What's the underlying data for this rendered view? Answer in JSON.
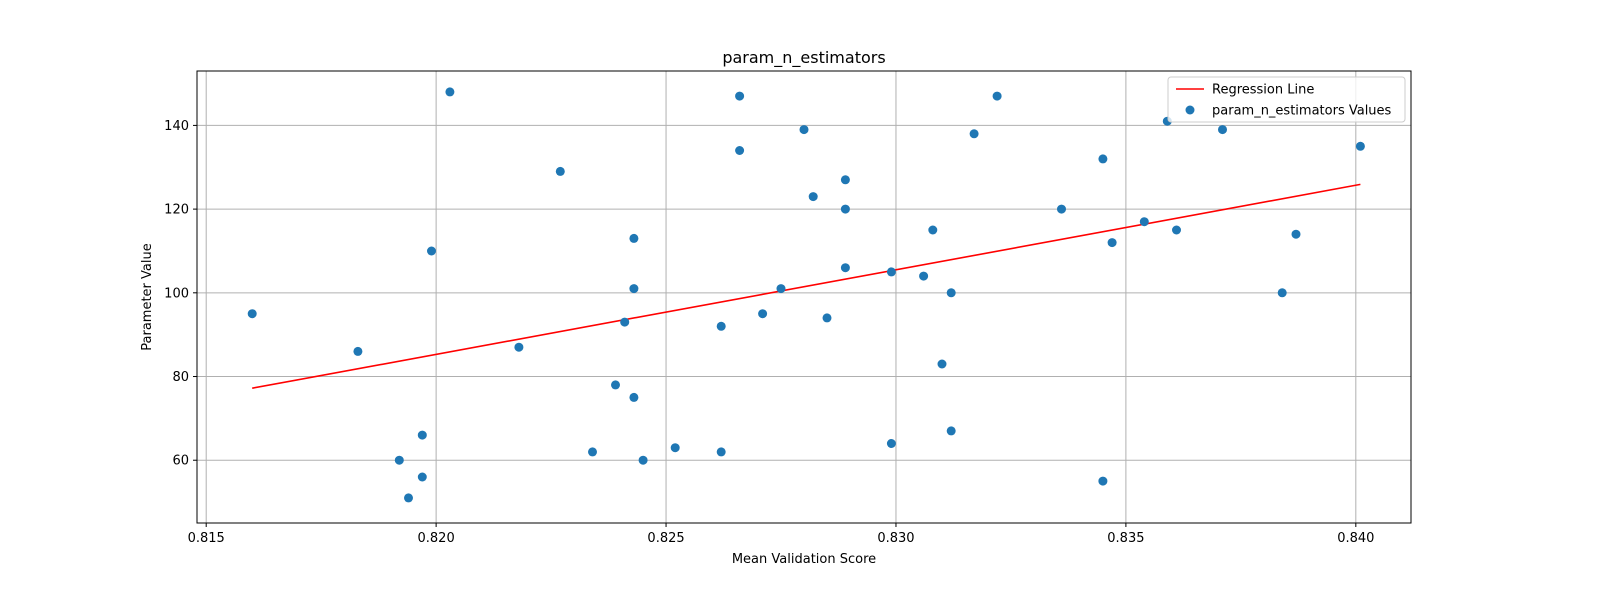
{
  "chart_data": {
    "type": "scatter",
    "title": "param_n_estimators",
    "xlabel": "Mean Validation Score",
    "ylabel": "Parameter Value",
    "xlim": [
      0.8148,
      0.8412
    ],
    "ylim": [
      45,
      153
    ],
    "xticks": [
      0.815,
      0.82,
      0.825,
      0.83,
      0.835,
      0.84
    ],
    "xtick_labels": [
      "0.815",
      "0.820",
      "0.825",
      "0.830",
      "0.835",
      "0.840"
    ],
    "yticks": [
      60,
      80,
      100,
      120,
      140
    ],
    "ytick_labels": [
      "60",
      "80",
      "100",
      "120",
      "140"
    ],
    "grid": true,
    "legend_position": "upper-right",
    "series": [
      {
        "name": "Regression Line",
        "kind": "line",
        "color": "#ff0000",
        "points": [
          [
            0.816,
            77.2
          ],
          [
            0.8401,
            125.9
          ]
        ]
      },
      {
        "name": "param_n_estimators Values",
        "kind": "scatter",
        "color": "#1f77b4",
        "points": [
          [
            0.816,
            95
          ],
          [
            0.8183,
            86
          ],
          [
            0.8192,
            60
          ],
          [
            0.8194,
            51
          ],
          [
            0.8197,
            66
          ],
          [
            0.8197,
            56
          ],
          [
            0.8199,
            110
          ],
          [
            0.8203,
            148
          ],
          [
            0.8218,
            87
          ],
          [
            0.8227,
            129
          ],
          [
            0.8234,
            62
          ],
          [
            0.8239,
            78
          ],
          [
            0.8241,
            93
          ],
          [
            0.8243,
            101
          ],
          [
            0.8243,
            113
          ],
          [
            0.8243,
            75
          ],
          [
            0.8245,
            60
          ],
          [
            0.8252,
            63
          ],
          [
            0.8262,
            92
          ],
          [
            0.8262,
            62
          ],
          [
            0.8266,
            147
          ],
          [
            0.8266,
            134
          ],
          [
            0.8271,
            95
          ],
          [
            0.8275,
            101
          ],
          [
            0.828,
            139
          ],
          [
            0.8282,
            123
          ],
          [
            0.8285,
            94
          ],
          [
            0.8289,
            127
          ],
          [
            0.8289,
            120
          ],
          [
            0.8289,
            106
          ],
          [
            0.8299,
            105
          ],
          [
            0.8299,
            64
          ],
          [
            0.8306,
            104
          ],
          [
            0.8308,
            115
          ],
          [
            0.831,
            83
          ],
          [
            0.8312,
            100
          ],
          [
            0.8312,
            67
          ],
          [
            0.8317,
            138
          ],
          [
            0.8322,
            147
          ],
          [
            0.8336,
            120
          ],
          [
            0.8345,
            132
          ],
          [
            0.8345,
            55
          ],
          [
            0.8347,
            112
          ],
          [
            0.8354,
            117
          ],
          [
            0.8359,
            141
          ],
          [
            0.8361,
            115
          ],
          [
            0.8371,
            139
          ],
          [
            0.8384,
            100
          ],
          [
            0.8387,
            114
          ],
          [
            0.8401,
            135
          ]
        ]
      }
    ]
  }
}
